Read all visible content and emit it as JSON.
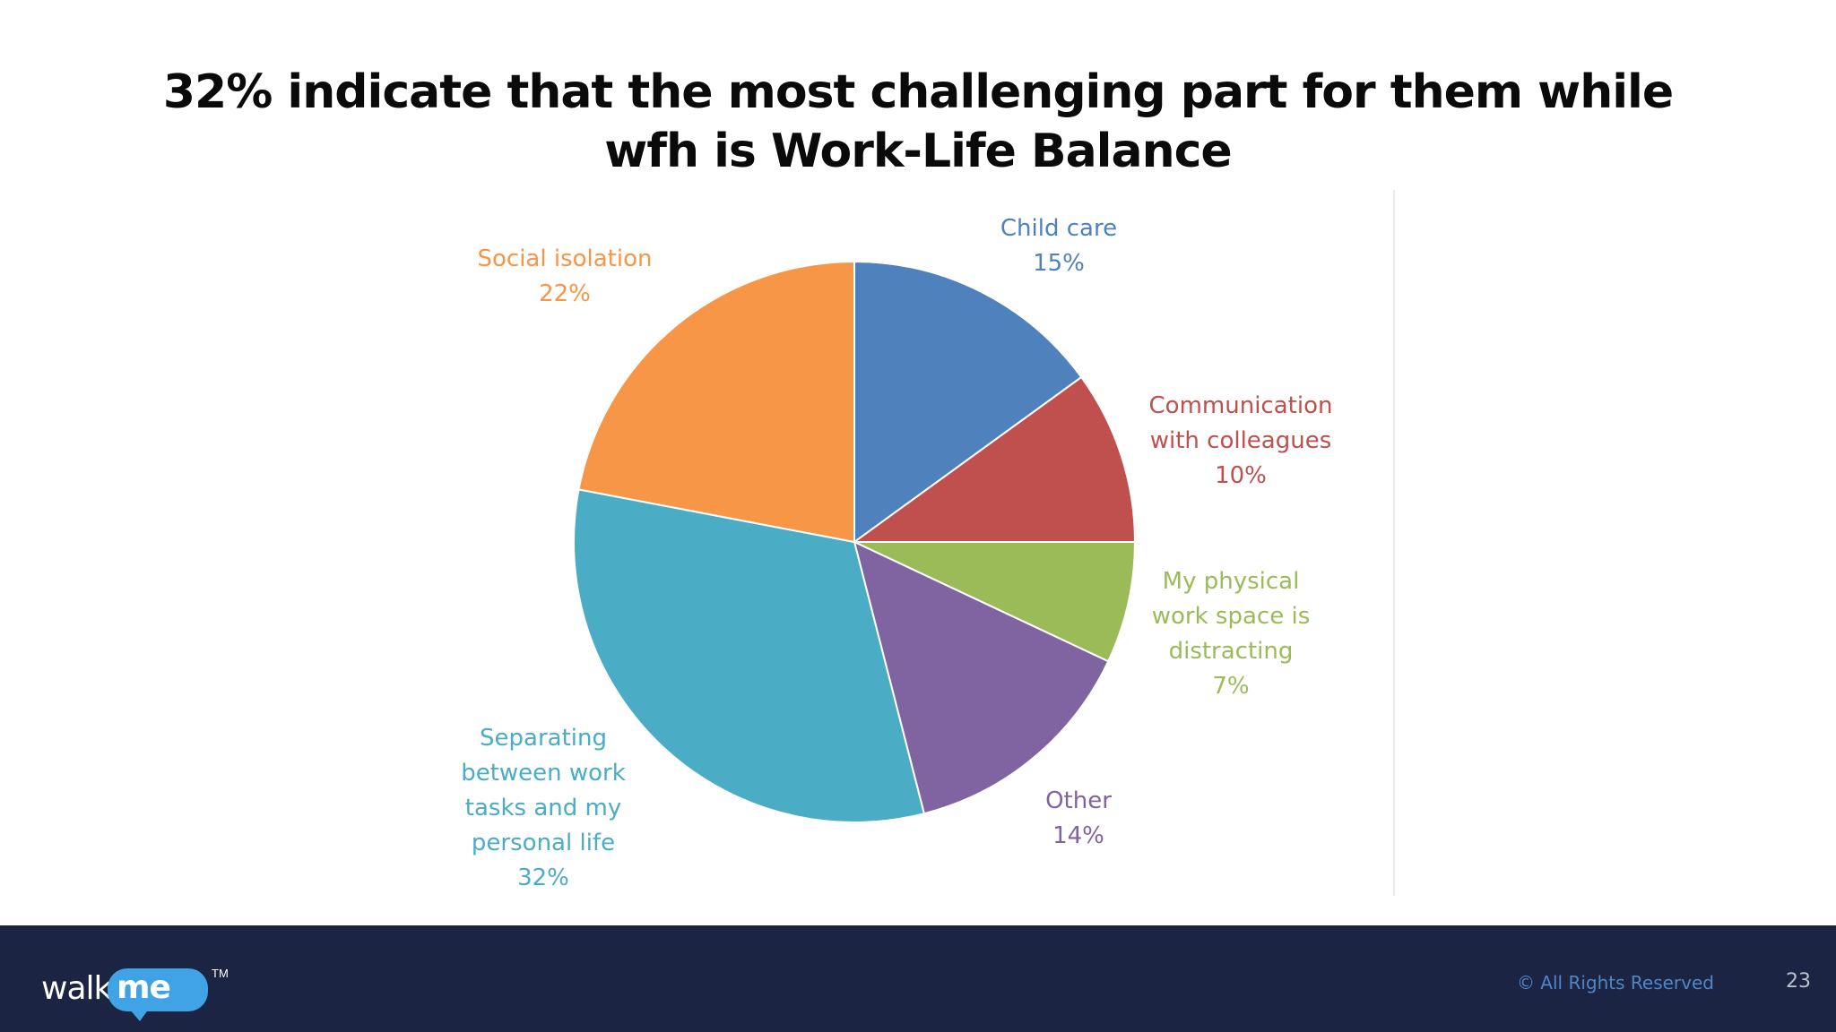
{
  "slide": {
    "title_lines": [
      "32% indicate that the most challenging part for them while",
      "wfh is Work-Life Balance"
    ]
  },
  "chart_data": {
    "type": "pie",
    "slices": [
      {
        "label_lines": [
          "Child care"
        ],
        "value": 15,
        "value_label": "15%",
        "color": "#4f81bd"
      },
      {
        "label_lines": [
          "Communication",
          "with colleagues"
        ],
        "value": 10,
        "value_label": "10%",
        "color": "#c0504d"
      },
      {
        "label_lines": [
          "My physical",
          "work space  is",
          "distracting"
        ],
        "value": 7,
        "value_label": "7%",
        "color": "#9bbb59"
      },
      {
        "label_lines": [
          "Other"
        ],
        "value": 14,
        "value_label": "14%",
        "color": "#8064a2"
      },
      {
        "label_lines": [
          "Separating",
          "between work",
          "tasks and my",
          "personal life"
        ],
        "value": 32,
        "value_label": "32%",
        "color": "#4bacc6"
      },
      {
        "label_lines": [
          "Social  isolation"
        ],
        "value": 22,
        "value_label": "22%",
        "color": "#f79646"
      }
    ],
    "start": "12 o'clock",
    "direction": "clockwise",
    "legend": "none"
  },
  "footer": {
    "logo": {
      "walk": "walk",
      "me": "me",
      "tm": "TM"
    },
    "copyright": "© All Rights Reserved",
    "page_number": "23"
  },
  "colors": {
    "footer_background": "#1c2444",
    "copyright_text": "#4f86c6",
    "logo_bubble": "#3fa3e6"
  }
}
